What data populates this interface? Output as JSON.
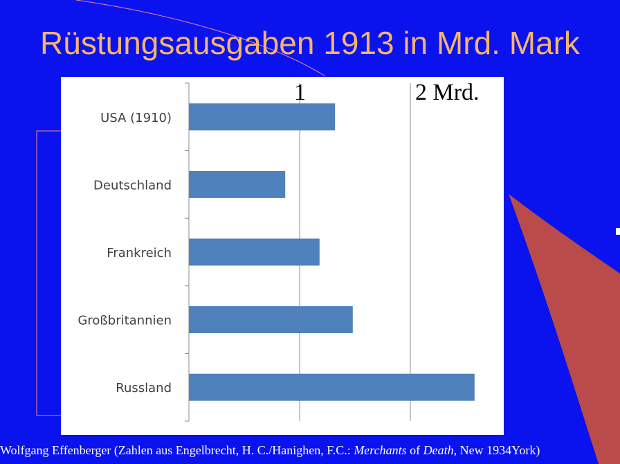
{
  "page": {
    "background": "#0a12ee",
    "accent": "#b94b4b",
    "title": "Rüstungsausgaben 1913 in Mrd. Mark",
    "title_color": "#f6b46c"
  },
  "chart_data": {
    "type": "bar",
    "orientation": "horizontal",
    "title": "",
    "xlabel": "",
    "ylabel": "",
    "categories": [
      "USA (1910)",
      "Deutschland",
      "Frankreich",
      "Großbritannien",
      "Russland"
    ],
    "values": [
      1.32,
      0.87,
      1.18,
      1.48,
      2.58
    ],
    "xlim": [
      0,
      2.6
    ],
    "gridlines": [
      1,
      2
    ],
    "grid_labels": [
      "1",
      "2 Mrd."
    ],
    "bar_color": "#4f81bd",
    "legend": "none"
  },
  "footer": {
    "part1": "Wolfgang Effenberger (Zahlen aus Engelbrecht, H. C./Hanighen, F.C.: ",
    "italic1": "Merchants",
    "part2": " of ",
    "italic2": "Death,",
    "part3": " New 1934York)"
  }
}
